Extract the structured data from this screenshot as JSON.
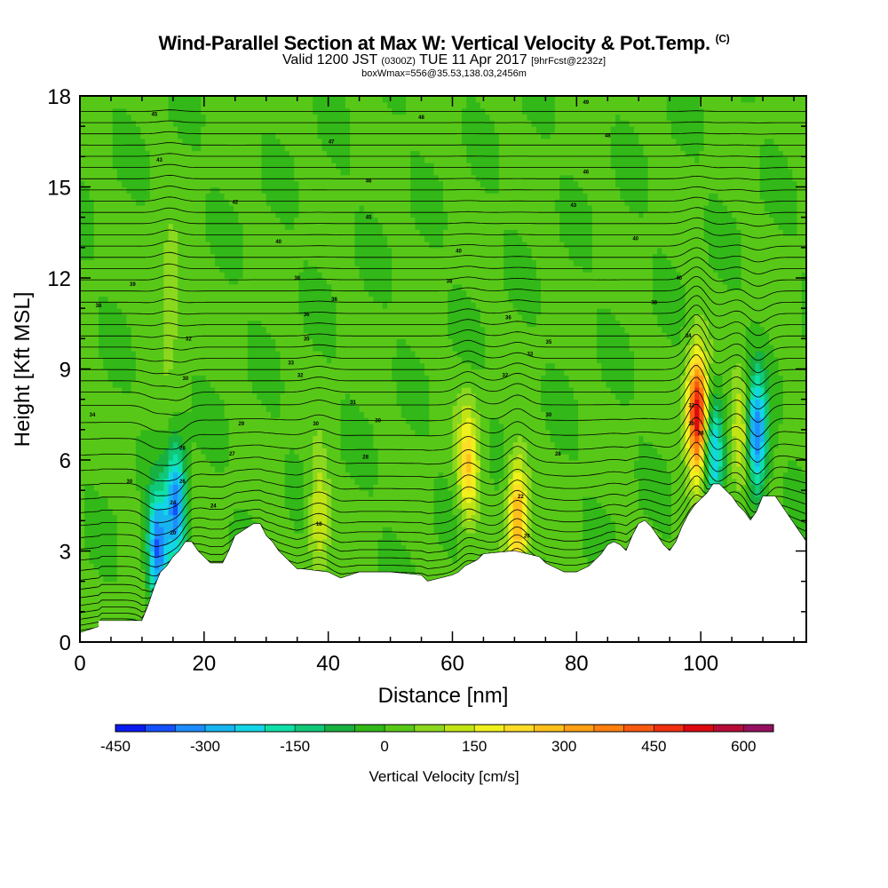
{
  "title": {
    "main": "Wind-Parallel Section at Max W: Vertical Velocity & Pot.Temp.",
    "copyright": "(C)",
    "valid_prefix": "Valid 1200 JST",
    "utc": "(0300Z)",
    "date": "TUE 11 Apr 2017",
    "forecast": "[9hrFcst@2232z]",
    "box": "boxWmax=556@35.53,138.03,2456m"
  },
  "chart_data": {
    "type": "heatmap",
    "title": "Wind-Parallel Section at Max W: Vertical Velocity & Pot.Temp.",
    "xlabel": "Distance [nm]",
    "ylabel": "Height [Kft MSL]",
    "xlim": [
      0,
      117
    ],
    "ylim": [
      0,
      18
    ],
    "xticks": [
      0,
      20,
      40,
      60,
      80,
      100
    ],
    "yticks": [
      0,
      3,
      6,
      9,
      12,
      15,
      18
    ],
    "grid": false,
    "colorbar": {
      "label": "Vertical Velocity [cm/s]",
      "min": -450,
      "max": 650,
      "step": 50,
      "tick_values": [
        -450,
        -300,
        -150,
        0,
        150,
        300,
        450,
        600
      ],
      "tick_labels": [
        "-450",
        "-300",
        "-150",
        "0",
        "150",
        "300",
        "450",
        "600"
      ],
      "colors": [
        "#0a1aee",
        "#1450ff",
        "#1e8cff",
        "#18b4f0",
        "#12d6e6",
        "#10e0a8",
        "#10c878",
        "#18b040",
        "#32b818",
        "#58c818",
        "#8cd81e",
        "#c2e414",
        "#f0f01c",
        "#ffdc28",
        "#ffc01c",
        "#ffa014",
        "#ff8010",
        "#f85a10",
        "#f03010",
        "#dc0a10",
        "#b80c38",
        "#961060"
      ]
    },
    "terrain": {
      "x": [
        0,
        3,
        3,
        6,
        10,
        11,
        12,
        13,
        14,
        15,
        16,
        17,
        18,
        19,
        20,
        21,
        22,
        23,
        24,
        25,
        28,
        29,
        30,
        31,
        32,
        33,
        34,
        35,
        36,
        40,
        42,
        45,
        50,
        55,
        56,
        58,
        60,
        61,
        62,
        63,
        64,
        65,
        70,
        72,
        74,
        75,
        76,
        77,
        78,
        80,
        82,
        84,
        85,
        86,
        87,
        88,
        89,
        90,
        91,
        92,
        93,
        94,
        95,
        96,
        97,
        98,
        99,
        100,
        101,
        102,
        103,
        104,
        105,
        106,
        107,
        108,
        109,
        110,
        112,
        113,
        114,
        115,
        116,
        117
      ],
      "h": [
        0.3,
        0.5,
        0.7,
        0.7,
        0.7,
        1.2,
        1.8,
        2.3,
        2.5,
        2.8,
        3.0,
        3.3,
        3.3,
        3.0,
        2.8,
        2.6,
        2.6,
        2.6,
        3.0,
        3.5,
        3.9,
        3.9,
        3.5,
        3.3,
        3.0,
        2.8,
        2.6,
        2.4,
        2.4,
        2.3,
        2.1,
        2.3,
        2.3,
        2.2,
        2.0,
        2.1,
        2.2,
        2.3,
        2.5,
        2.6,
        2.7,
        2.9,
        3.0,
        2.9,
        2.8,
        2.6,
        2.5,
        2.4,
        2.3,
        2.3,
        2.5,
        2.9,
        3.2,
        3.3,
        3.2,
        3.0,
        3.5,
        3.9,
        4.0,
        3.8,
        3.5,
        3.2,
        3.0,
        3.3,
        3.8,
        4.2,
        4.5,
        4.7,
        4.9,
        5.2,
        5.2,
        5.0,
        4.8,
        4.5,
        4.3,
        4.0,
        4.3,
        4.8,
        4.8,
        4.5,
        4.2,
        3.9,
        3.6,
        3.3
      ]
    },
    "features": [
      {
        "x": 15.5,
        "height": 4.5,
        "w": -350
      },
      {
        "x": 14.5,
        "height": 11.5,
        "w": 120
      },
      {
        "x": 12.5,
        "height": 3.0,
        "w": -380
      },
      {
        "x": 38.5,
        "height": 4.2,
        "w": 150
      },
      {
        "x": 62.5,
        "height": 5.8,
        "w": 230
      },
      {
        "x": 70.5,
        "height": 4.2,
        "w": 300
      },
      {
        "x": 99.5,
        "height": 7.5,
        "w": 556
      },
      {
        "x": 102.0,
        "height": 6.2,
        "w": -250
      },
      {
        "x": 106.5,
        "height": 7.0,
        "w": 150
      },
      {
        "x": 109.0,
        "height": 6.8,
        "w": -380
      }
    ],
    "contour_labels": [
      {
        "x": 12.0,
        "y": 17.4,
        "text": "45"
      },
      {
        "x": 12.8,
        "y": 15.9,
        "text": "43"
      },
      {
        "x": 8.5,
        "y": 11.8,
        "text": "39"
      },
      {
        "x": 3.0,
        "y": 11.1,
        "text": "38"
      },
      {
        "x": 2.0,
        "y": 7.5,
        "text": "34"
      },
      {
        "x": 8.0,
        "y": 5.3,
        "text": "30"
      },
      {
        "x": 25.0,
        "y": 14.5,
        "text": "42"
      },
      {
        "x": 32.0,
        "y": 13.2,
        "text": "40"
      },
      {
        "x": 35.0,
        "y": 12.0,
        "text": "38"
      },
      {
        "x": 36.5,
        "y": 10.8,
        "text": "36"
      },
      {
        "x": 36.5,
        "y": 10.0,
        "text": "35"
      },
      {
        "x": 40.5,
        "y": 16.5,
        "text": "47"
      },
      {
        "x": 46.5,
        "y": 15.2,
        "text": "46"
      },
      {
        "x": 46.5,
        "y": 14.0,
        "text": "45"
      },
      {
        "x": 41.0,
        "y": 11.3,
        "text": "36"
      },
      {
        "x": 34.0,
        "y": 9.2,
        "text": "33"
      },
      {
        "x": 35.5,
        "y": 8.8,
        "text": "32"
      },
      {
        "x": 44.0,
        "y": 7.9,
        "text": "31"
      },
      {
        "x": 26.0,
        "y": 7.2,
        "text": "29"
      },
      {
        "x": 38.0,
        "y": 7.2,
        "text": "30"
      },
      {
        "x": 48.0,
        "y": 7.3,
        "text": "30"
      },
      {
        "x": 46.0,
        "y": 6.1,
        "text": "28"
      },
      {
        "x": 24.5,
        "y": 6.2,
        "text": "27"
      },
      {
        "x": 21.5,
        "y": 4.5,
        "text": "24"
      },
      {
        "x": 38.5,
        "y": 3.9,
        "text": "18"
      },
      {
        "x": 17.5,
        "y": 10.0,
        "text": "32"
      },
      {
        "x": 17.0,
        "y": 8.7,
        "text": "30"
      },
      {
        "x": 16.5,
        "y": 6.4,
        "text": "28"
      },
      {
        "x": 16.5,
        "y": 5.3,
        "text": "26"
      },
      {
        "x": 15.0,
        "y": 4.6,
        "text": "24"
      },
      {
        "x": 15.0,
        "y": 3.6,
        "text": "20"
      },
      {
        "x": 81.5,
        "y": 17.8,
        "text": "49"
      },
      {
        "x": 55.0,
        "y": 17.3,
        "text": "48"
      },
      {
        "x": 85.0,
        "y": 16.7,
        "text": "48"
      },
      {
        "x": 81.5,
        "y": 15.5,
        "text": "46"
      },
      {
        "x": 79.5,
        "y": 14.4,
        "text": "43"
      },
      {
        "x": 89.5,
        "y": 13.3,
        "text": "40"
      },
      {
        "x": 61.0,
        "y": 12.9,
        "text": "40"
      },
      {
        "x": 59.5,
        "y": 11.9,
        "text": "38"
      },
      {
        "x": 69.0,
        "y": 10.7,
        "text": "36"
      },
      {
        "x": 75.5,
        "y": 9.9,
        "text": "35"
      },
      {
        "x": 72.5,
        "y": 9.5,
        "text": "33"
      },
      {
        "x": 68.5,
        "y": 8.8,
        "text": "32"
      },
      {
        "x": 75.5,
        "y": 7.5,
        "text": "30"
      },
      {
        "x": 77.0,
        "y": 6.2,
        "text": "28"
      },
      {
        "x": 92.5,
        "y": 11.2,
        "text": "38"
      },
      {
        "x": 96.5,
        "y": 12.0,
        "text": "40"
      },
      {
        "x": 98.0,
        "y": 10.1,
        "text": "34"
      },
      {
        "x": 98.5,
        "y": 7.8,
        "text": "32"
      },
      {
        "x": 98.5,
        "y": 7.2,
        "text": "30"
      },
      {
        "x": 100.0,
        "y": 6.9,
        "text": "28"
      },
      {
        "x": 71.0,
        "y": 4.8,
        "text": "22"
      },
      {
        "x": 72.0,
        "y": 3.5,
        "text": "20"
      }
    ]
  }
}
